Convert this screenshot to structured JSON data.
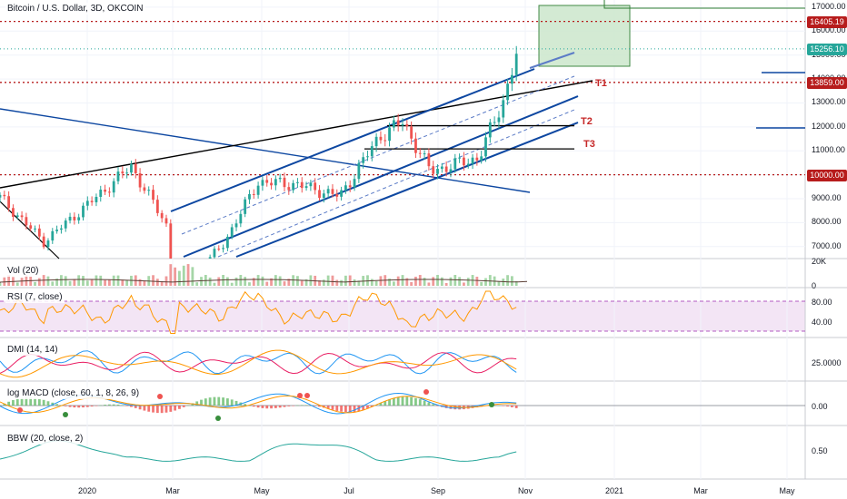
{
  "header": {
    "title": "Bitcoin / U.S. Dollar, 3D, OKCOIN"
  },
  "colors": {
    "up": "#26a69a",
    "down": "#ef5350",
    "channel": "#0d47a1",
    "level": "#b71c1c",
    "box_fill": "#cfe8cf",
    "box_line": "#2e7d32",
    "rsi_band": "#f3e5f5",
    "plus_di": "#2196f3",
    "minus_di": "#e91e63",
    "adx": "#ff9800",
    "macd": "#2196f3",
    "signal": "#ff9800",
    "bbw": "#26a69a"
  },
  "price_axis": {
    "labels": [
      "17000.00",
      "16000.00",
      "15000.00",
      "14000.00",
      "13000.00",
      "12000.00",
      "11000.00",
      "10000.00",
      "9000.00",
      "8000.00",
      "7000.00"
    ]
  },
  "price_tags": [
    {
      "value": 16405.19,
      "label": "16405.19",
      "color": "#b71c1c"
    },
    {
      "value": 15256.1,
      "label": "15256.10",
      "color": "#26a69a"
    },
    {
      "value": 13859.0,
      "label": "13859.00",
      "color": "#b71c1c"
    },
    {
      "value": 10000.0,
      "label": "10000.00",
      "color": "#b71c1c"
    }
  ],
  "targets": {
    "t1": "T1",
    "t2": "T2",
    "t3": "T3"
  },
  "indicators": {
    "vol": {
      "label": "Vol (20)",
      "axis": [
        "20K",
        "0"
      ]
    },
    "rsi": {
      "label": "RSI (7, close)",
      "axis": [
        "80.00",
        "40.00"
      ]
    },
    "dmi": {
      "label": "DMI (14, 14)",
      "axis": [
        "25.0000"
      ]
    },
    "macd": {
      "label": "log MACD (close, 60, 1, 8, 26, 9)",
      "axis": [
        "0.00"
      ]
    },
    "bbw": {
      "label": "BBW (20, close, 2)",
      "axis": [
        "0.50"
      ]
    }
  },
  "time_axis": {
    "labels": [
      "2020",
      "Mar",
      "May",
      "Jul",
      "Sep",
      "Nov",
      "2021",
      "Mar",
      "May"
    ]
  },
  "chart_data": {
    "type": "candlestick",
    "title": "Bitcoin / U.S. Dollar, 3D, OKCOIN",
    "x_range": [
      "2019-11-15",
      "2021-05-20"
    ],
    "y_range": [
      6500,
      17300
    ],
    "ohlc_close_path": [
      {
        "t": "2019-11-15",
        "v": 9050
      },
      {
        "t": "2019-12-15",
        "v": 7200
      },
      {
        "t": "2020-01-15",
        "v": 8800
      },
      {
        "t": "2020-02-13",
        "v": 10350
      },
      {
        "t": "2020-03-08",
        "v": 7900
      },
      {
        "t": "2020-03-13",
        "v": 5000
      },
      {
        "t": "2020-04-15",
        "v": 7000
      },
      {
        "t": "2020-05-10",
        "v": 9700
      },
      {
        "t": "2020-06-05",
        "v": 9600
      },
      {
        "t": "2020-07-05",
        "v": 9100
      },
      {
        "t": "2020-08-01",
        "v": 11600
      },
      {
        "t": "2020-08-17",
        "v": 12200
      },
      {
        "t": "2020-09-05",
        "v": 10150
      },
      {
        "t": "2020-10-08",
        "v": 10700
      },
      {
        "t": "2020-10-25",
        "v": 13100
      },
      {
        "t": "2020-11-04",
        "v": 15256
      }
    ],
    "levels": [
      {
        "name": "16405.19",
        "value": 16405.19
      },
      {
        "name": "13859.00",
        "value": 13859
      },
      {
        "name": "10000.00",
        "value": 10000
      }
    ],
    "target_lines": [
      {
        "name": "T1",
        "value": 13700
      },
      {
        "name": "T2",
        "value": 12050
      },
      {
        "name": "T3",
        "value": 11080
      }
    ],
    "rsi_bands": [
      30,
      70
    ],
    "last_price": 15256.1
  }
}
